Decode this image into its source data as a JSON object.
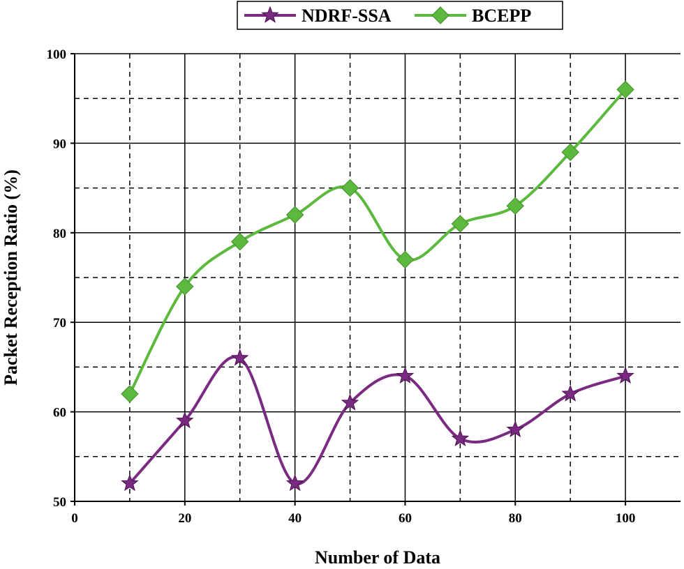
{
  "chart_data": {
    "type": "line",
    "title": "",
    "xlabel": "Number of Data",
    "ylabel": "Packet  Reception Ratio (%)",
    "x": [
      10,
      20,
      30,
      40,
      50,
      60,
      70,
      80,
      90,
      100
    ],
    "xlim": [
      0,
      110
    ],
    "ylim": [
      50,
      100
    ],
    "xticks": [
      "0",
      "20",
      "40",
      "60",
      "80",
      "100"
    ],
    "yticks": [
      "50",
      "60",
      "70",
      "80",
      "90",
      "100"
    ],
    "grid": true,
    "legend_position": "top-center",
    "series": [
      {
        "name": "NDRF-SSA",
        "color": "#7a2a80",
        "marker": "star",
        "values": [
          52,
          59,
          66,
          52,
          61,
          64,
          57,
          58,
          62,
          64
        ]
      },
      {
        "name": "BCEPP",
        "color": "#5cb93e",
        "marker": "diamond",
        "values": [
          62,
          74,
          79,
          82,
          85,
          77,
          81,
          83,
          89,
          96
        ]
      }
    ]
  }
}
